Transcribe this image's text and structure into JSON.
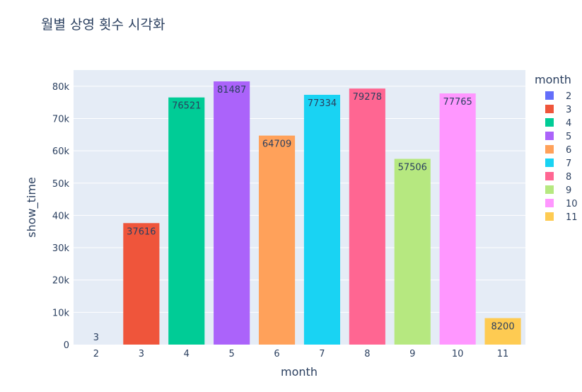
{
  "chart_data": {
    "type": "bar",
    "title": "월별 상영 횟수 시각화",
    "xlabel": "month",
    "ylabel": "show_time",
    "categories": [
      "2",
      "3",
      "4",
      "5",
      "6",
      "7",
      "8",
      "9",
      "10",
      "11"
    ],
    "values": [
      3,
      37616,
      76521,
      81487,
      64709,
      77334,
      79278,
      57506,
      77765,
      8200
    ],
    "colors": [
      "#636efa",
      "#EF553B",
      "#00cc96",
      "#ab63fa",
      "#FFA15A",
      "#19d3f3",
      "#FF6692",
      "#B6E880",
      "#FF97FF",
      "#FECB52"
    ],
    "ylim": [
      0,
      85000
    ],
    "yticks": [
      0,
      10000,
      20000,
      30000,
      40000,
      50000,
      60000,
      70000,
      80000
    ],
    "ytick_labels": [
      "0",
      "10k",
      "20k",
      "30k",
      "40k",
      "50k",
      "60k",
      "70k",
      "80k"
    ],
    "grid": true,
    "plot_background": "#E5ECF6",
    "legend": {
      "title": "month",
      "position": "right",
      "entries": [
        "2",
        "3",
        "4",
        "5",
        "6",
        "7",
        "8",
        "9",
        "10",
        "11"
      ]
    }
  }
}
